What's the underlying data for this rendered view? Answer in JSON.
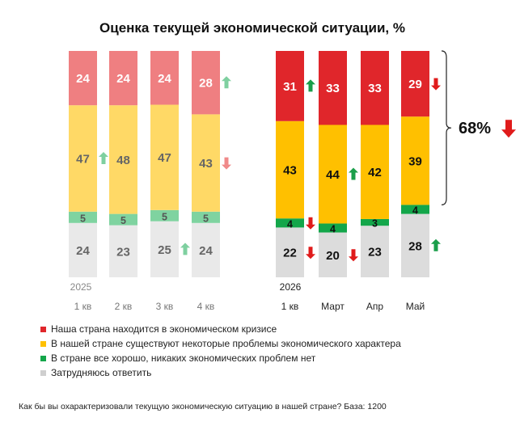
{
  "chart_data": {
    "type": "bar",
    "stacked": true,
    "title": "Оценка текущей экономической ситуации, %",
    "groups": [
      {
        "year_label": "2025",
        "style": "faded",
        "categories": [
          "1 кв",
          "2 кв",
          "3 кв",
          "4 кв"
        ],
        "series": [
          {
            "name": "Затрудняюсь ответить",
            "values": [
              24,
              23,
              25,
              24
            ]
          },
          {
            "name": "В стране все хорошо, никаких экономических проблем нет",
            "values": [
              5,
              5,
              5,
              5
            ]
          },
          {
            "name": "В нашей стране существуют некоторые проблемы экономического характера",
            "values": [
              47,
              48,
              47,
              43
            ]
          },
          {
            "name": "Наша страна находится в экономическом кризисе",
            "values": [
              24,
              24,
              24,
              28
            ]
          }
        ]
      },
      {
        "year_label": "2026",
        "style": "bright",
        "categories": [
          "1 кв",
          "Март",
          "Апр",
          "Май"
        ],
        "series": [
          {
            "name": "Затрудняюсь ответить",
            "values": [
              22,
              20,
              23,
              28
            ]
          },
          {
            "name": "В стране все хорошо, никаких экономических проблем нет",
            "values": [
              4,
              4,
              3,
              4
            ]
          },
          {
            "name": "В нашей стране существуют некоторые проблемы экономического характера",
            "values": [
              43,
              44,
              42,
              39
            ]
          },
          {
            "name": "Наша страна находится в экономическом кризисе",
            "values": [
              31,
              33,
              33,
              29
            ]
          }
        ]
      }
    ],
    "change_arrows": [
      {
        "group": 0,
        "bar": 0,
        "segment": 2,
        "direction": "up",
        "color": "#7fd0a0"
      },
      {
        "group": 0,
        "bar": 2,
        "segment": 0,
        "direction": "up",
        "color": "#7fd0a0"
      },
      {
        "group": 0,
        "bar": 3,
        "segment": 3,
        "direction": "up",
        "color": "#7fd0a0"
      },
      {
        "group": 0,
        "bar": 3,
        "segment": 2,
        "direction": "down",
        "color": "#f08a8a"
      },
      {
        "group": 1,
        "bar": 0,
        "segment": 3,
        "direction": "up",
        "color": "#1a9e4a"
      },
      {
        "group": 1,
        "bar": 0,
        "segment": 1,
        "direction": "down",
        "color": "#e01b1b"
      },
      {
        "group": 1,
        "bar": 0,
        "segment": 0,
        "direction": "down",
        "color": "#e01b1b"
      },
      {
        "group": 1,
        "bar": 1,
        "segment": 2,
        "direction": "up",
        "color": "#1a9e4a"
      },
      {
        "group": 1,
        "bar": 1,
        "segment": 0,
        "direction": "down",
        "color": "#e01b1b"
      },
      {
        "group": 1,
        "bar": 3,
        "segment": 3,
        "direction": "down",
        "color": "#e01b1b"
      },
      {
        "group": 1,
        "bar": 3,
        "segment": 0,
        "direction": "up",
        "color": "#1a9e4a"
      }
    ],
    "bracket_callout": {
      "value_label": "68%",
      "direction": "down",
      "color": "#e01b1b"
    },
    "colors": {
      "bright": [
        "#dcdcdc",
        "#13a64a",
        "#ffc000",
        "#e0262b"
      ],
      "faded": [
        "#e9e9e9",
        "#7fd3a0",
        "#ffd966",
        "#ef7f81"
      ]
    },
    "label_colors": {
      "bright": [
        "#111111",
        "#111111",
        "#111111",
        "#ffffff"
      ],
      "faded": [
        "#666666",
        "#555555",
        "#666666",
        "#ffffff"
      ]
    }
  },
  "legend": [
    {
      "label": "Наша страна находится в экономическом кризисе",
      "color": "#e0262b"
    },
    {
      "label": "В нашей стране существуют некоторые проблемы экономического характера",
      "color": "#ffc000"
    },
    {
      "label": "В стране все хорошо, никаких экономических проблем нет",
      "color": "#13a64a"
    },
    {
      "label": "Затрудняюсь ответить",
      "color": "#cfcfcf"
    }
  ],
  "footnote": "Как бы вы охарактеризовали текущую экономическую ситуацию в нашей стране? База: 1200"
}
